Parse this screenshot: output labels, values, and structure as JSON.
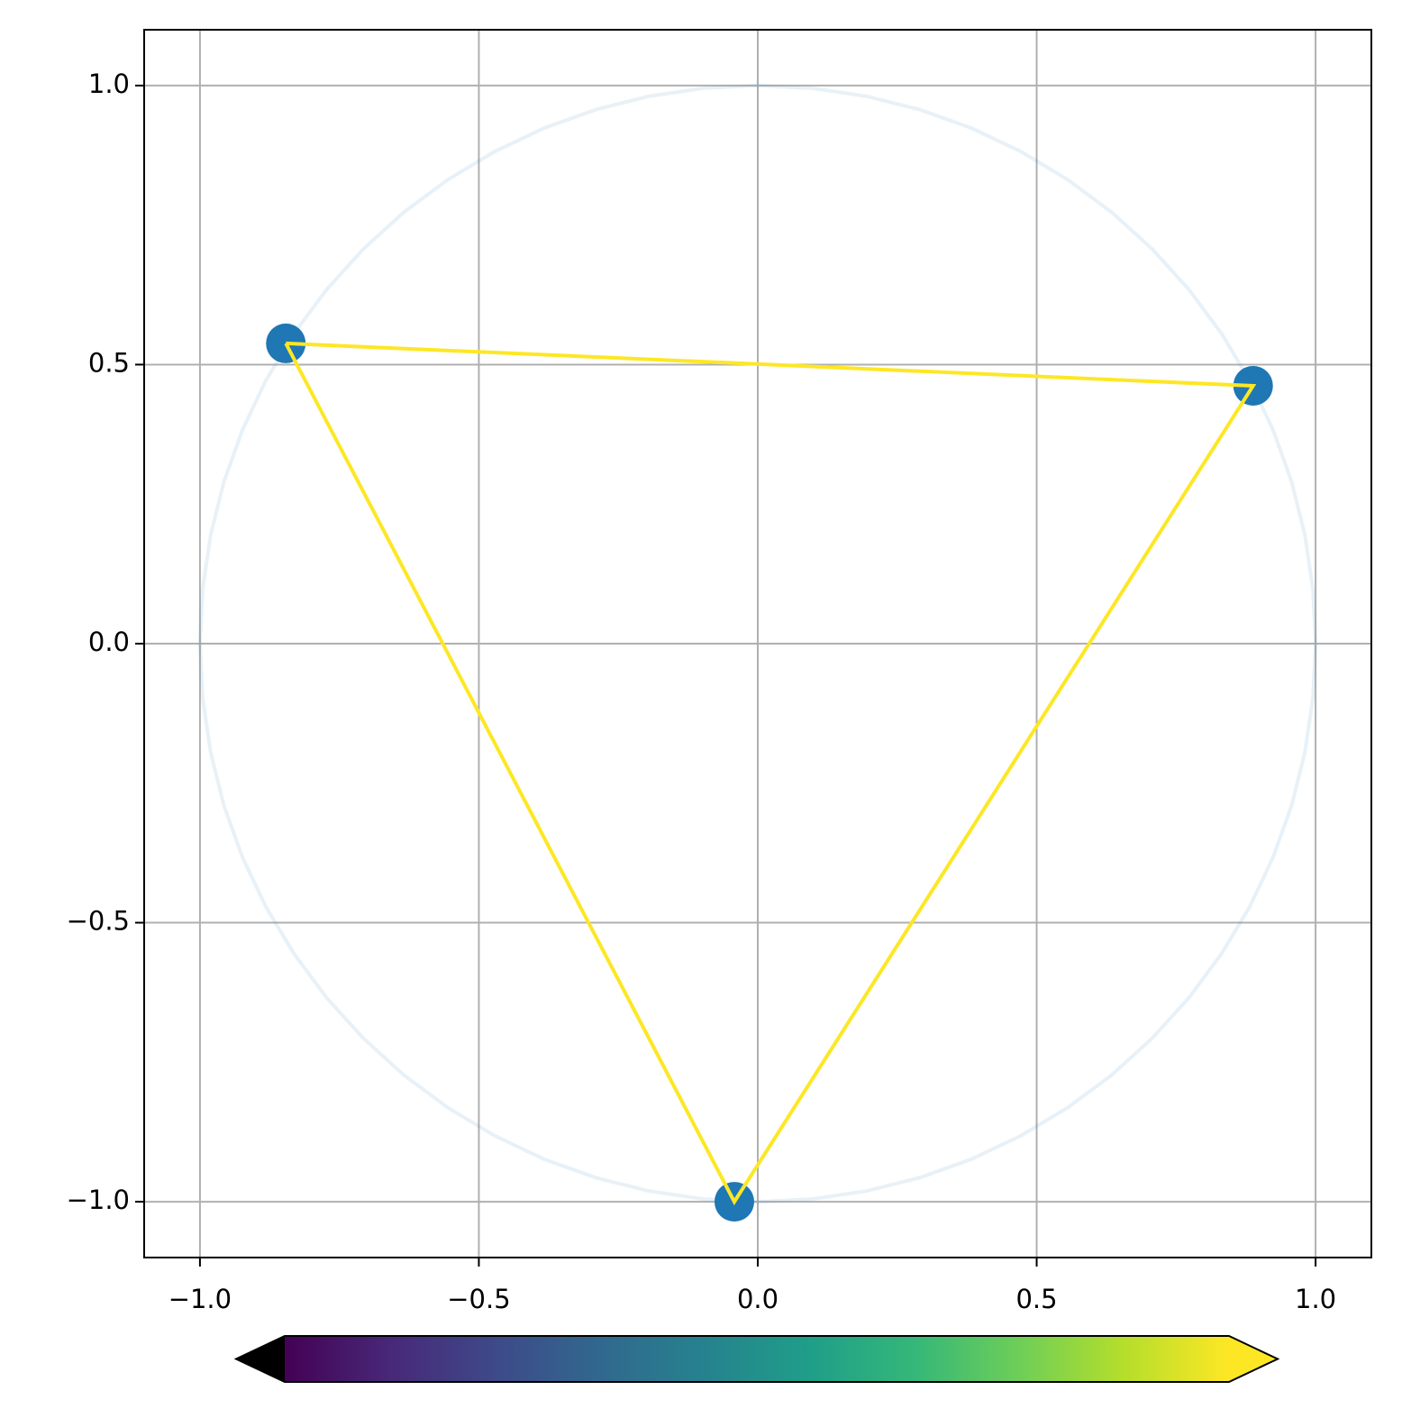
{
  "chart_data": {
    "type": "scatter",
    "xlim": [
      -1.1,
      1.1
    ],
    "ylim": [
      -1.1,
      1.1
    ],
    "xticks": [
      {
        "value": -1,
        "label": "−1.0"
      },
      {
        "value": -0.5,
        "label": "−0.5"
      },
      {
        "value": 0,
        "label": "0.0"
      },
      0.5,
      {
        "value": 1,
        "label": "1.0"
      }
    ],
    "yticks": [
      {
        "value": -1,
        "label": "−1.0"
      },
      {
        "value": -0.5,
        "label": "−0.5"
      },
      {
        "value": 0,
        "label": "0.0"
      },
      0.5,
      {
        "value": 1,
        "label": "1.0"
      }
    ],
    "grid": true,
    "circle": {
      "radius": 1,
      "color": "#1f77b4",
      "opacity": 0.1
    },
    "series": [
      {
        "type": "line",
        "color": "#fde725",
        "x": [
          -0.846,
          0.888,
          -0.042,
          -0.846
        ],
        "values": [
          0.538,
          0.462,
          -1.0,
          0.538
        ]
      },
      {
        "type": "scatter",
        "color": "#1f77b4",
        "x": [
          -0.846,
          0.888,
          -0.042
        ],
        "values": [
          0.538,
          0.462,
          -1.0
        ]
      }
    ],
    "colorbar": {
      "colors": [
        "#440154",
        "#482878",
        "#3e4989",
        "#31688e",
        "#26828e",
        "#1f9e89",
        "#35b779",
        "#6ece58",
        "#b5de2b",
        "#fde725"
      ],
      "extend": "both",
      "under_color": "#000000",
      "over_color": "#fde725"
    }
  }
}
